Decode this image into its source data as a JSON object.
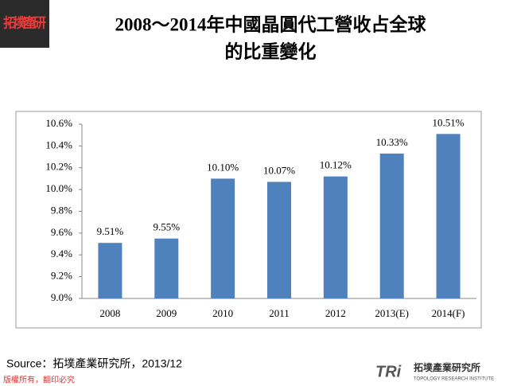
{
  "logo": {
    "text": "拓墣產研"
  },
  "chart_data": {
    "type": "bar",
    "title": [
      "2008～2014年中國晶圓代工營收占全球",
      "的比重變化"
    ],
    "categories": [
      "2008",
      "2009",
      "2010",
      "2011",
      "2012",
      "2013(E)",
      "2014(F)"
    ],
    "values": [
      9.51,
      9.55,
      10.1,
      10.07,
      10.12,
      10.33,
      10.51
    ],
    "value_labels": [
      "9.51%",
      "9.55%",
      "10.10%",
      "10.07%",
      "10.12%",
      "10.33%",
      "10.51%"
    ],
    "color": "#4f81bd",
    "ylim": [
      9.0,
      10.6
    ],
    "yticks": [
      {
        "value": 9.0,
        "label": "9.0%"
      },
      {
        "value": 9.2,
        "label": "9.2%"
      },
      {
        "value": 9.4,
        "label": "9.4%"
      },
      {
        "value": 9.6,
        "label": "9.6%"
      },
      {
        "value": 9.8,
        "label": "9.8%"
      },
      {
        "value": 10.0,
        "label": "10.0%"
      },
      {
        "value": 10.2,
        "label": "10.2%"
      },
      {
        "value": 10.4,
        "label": "10.4%"
      },
      {
        "value": 10.6,
        "label": "10.6%"
      }
    ],
    "grid": false
  },
  "source": "Source：拓墣產業研究所，2013/12",
  "footer": {
    "copyright": "版權所有，翻印必究",
    "brand": "TRi",
    "institute": "拓墣產業研究所",
    "institute_en": "TOPOLOGY RESEARCH INSTITUTE"
  }
}
